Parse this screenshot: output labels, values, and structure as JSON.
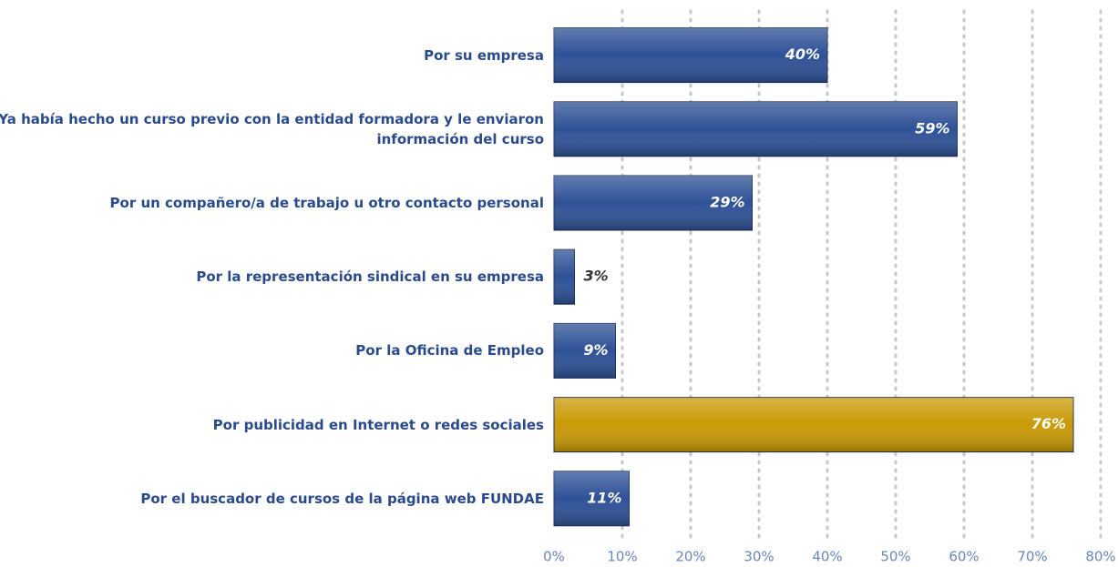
{
  "chart_data": {
    "type": "bar",
    "orientation": "horizontal",
    "categories": [
      "Por su empresa",
      "Ya había hecho un curso previo con la entidad formadora y le enviaron información del curso",
      "Por un compañero/a de trabajo u otro contacto personal",
      "Por la representación sindical en su empresa",
      "Por la Oficina de Empleo",
      "Por publicidad en Internet o redes sociales",
      "Por el buscador de cursos de la página web FUNDAE"
    ],
    "values": [
      40,
      59,
      29,
      3,
      9,
      76,
      11
    ],
    "value_labels": [
      "40%",
      "59%",
      "29%",
      "3%",
      "9%",
      "76%",
      "11%"
    ],
    "colors": [
      "#2e5196",
      "#2e5196",
      "#2e5196",
      "#2e5196",
      "#2e5196",
      "#c99a06",
      "#2e5196"
    ],
    "xlim": [
      0,
      80
    ],
    "xticks": [
      {
        "value": 0,
        "label": "0%"
      },
      {
        "value": 10,
        "label": "10%"
      },
      {
        "value": 20,
        "label": "20%"
      },
      {
        "value": 30,
        "label": "30%"
      },
      {
        "value": 40,
        "label": "40%"
      },
      {
        "value": 50,
        "label": "50%"
      },
      {
        "value": 60,
        "label": "60%"
      },
      {
        "value": 70,
        "label": "70%"
      },
      {
        "value": 80,
        "label": "80%"
      }
    ],
    "grid": true
  }
}
